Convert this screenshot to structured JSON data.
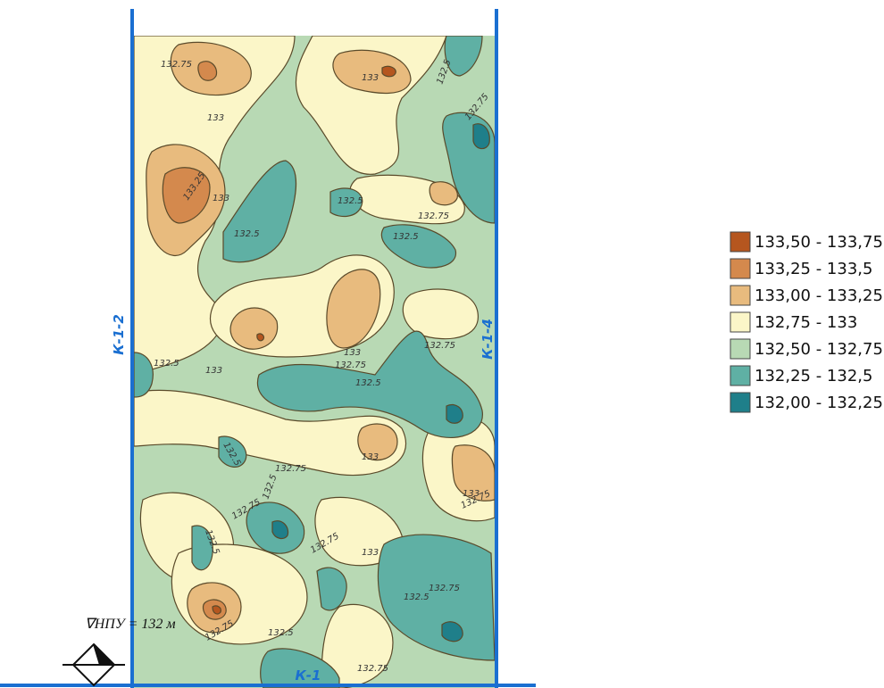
{
  "map": {
    "canals": {
      "left": "К-1-2",
      "right": "К-1-4",
      "bottom": "К-1"
    },
    "water_level": "∇НПУ = 132 м",
    "contour_labels": [
      "132.75",
      "133",
      "133",
      "132.5",
      "132.75",
      "133.25",
      "133",
      "132.5",
      "132.5",
      "132.75",
      "132.5",
      "132.5",
      "133",
      "132.75",
      "132.5",
      "132.75",
      "133",
      "132.5",
      "132.75",
      "132.75",
      "133",
      "132.5",
      "132.75",
      "132.75",
      "133",
      "132.5",
      "133",
      "132.75",
      "132.5",
      "132.75",
      "132.75",
      "132.5"
    ]
  },
  "legend": {
    "items": [
      {
        "label": "133,50 - 133,75",
        "color": "#b5561f"
      },
      {
        "label": "133,25 - 133,5",
        "color": "#d4894d"
      },
      {
        "label": "133,00 - 133,25",
        "color": "#e8bb7e"
      },
      {
        "label": "132,75 - 133",
        "color": "#fbf6c8"
      },
      {
        "label": "132,50 - 132,75",
        "color": "#b8d9b4"
      },
      {
        "label": "132,25 - 132,5",
        "color": "#5fb0a4"
      },
      {
        "label": "132,00 - 132,25",
        "color": "#1f7f8a"
      }
    ]
  }
}
